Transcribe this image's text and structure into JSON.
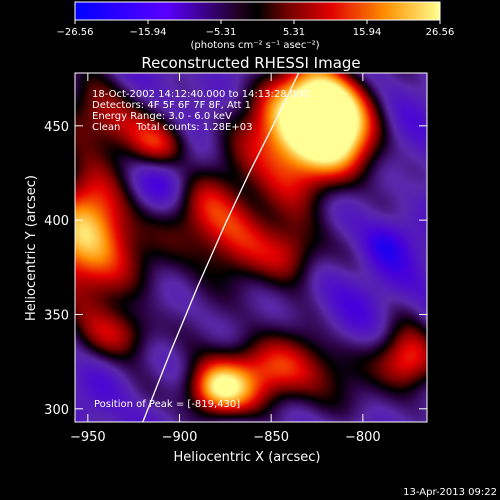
{
  "chart_data": {
    "type": "heatmap",
    "title": "Reconstructed RHESSI Image",
    "xlabel": "Heliocentric X (arcsec)",
    "ylabel": "Heliocentric Y (arcsec)",
    "xlim": [
      -957,
      -765
    ],
    "ylim": [
      293,
      478
    ],
    "x_ticks": [
      -950,
      -900,
      -850,
      -800
    ],
    "x_tick_labels": [
      "−950",
      "−900",
      "−850",
      "−800"
    ],
    "y_ticks": [
      300,
      350,
      400,
      450
    ],
    "y_tick_labels": [
      "300",
      "350",
      "400",
      "450"
    ],
    "colorbar": {
      "min": -26.56,
      "max": 26.56,
      "tick_labels": [
        "−26.56",
        "−15.94",
        "−5.31",
        "5.31",
        "15.94",
        "26.56"
      ],
      "tick_values": [
        -26.56,
        -15.94,
        -5.31,
        5.31,
        15.94,
        26.56
      ],
      "units": "(photons cm⁻² s⁻¹ asec⁻²)"
    },
    "blobs": [
      {
        "x": -834,
        "y": 448,
        "value": 26.5,
        "sx": 20,
        "sy": 22
      },
      {
        "x": -820,
        "y": 460,
        "value": 20,
        "sx": 14,
        "sy": 14
      },
      {
        "x": -950,
        "y": 390,
        "value": 24,
        "sx": 18,
        "sy": 24
      },
      {
        "x": -943,
        "y": 455,
        "value": 11,
        "sx": 16,
        "sy": 14
      },
      {
        "x": -910,
        "y": 440,
        "value": 8,
        "sx": 12,
        "sy": 10
      },
      {
        "x": -878,
        "y": 398,
        "value": 12,
        "sx": 22,
        "sy": 22
      },
      {
        "x": -880,
        "y": 310,
        "value": 20,
        "sx": 12,
        "sy": 10
      },
      {
        "x": -845,
        "y": 320,
        "value": 13,
        "sx": 26,
        "sy": 14
      },
      {
        "x": -775,
        "y": 325,
        "value": 14,
        "sx": 12,
        "sy": 12
      },
      {
        "x": -930,
        "y": 340,
        "value": 6,
        "sx": 14,
        "sy": 10
      },
      {
        "x": -838,
        "y": 382,
        "value": 7,
        "sx": 12,
        "sy": 12
      },
      {
        "x": -808,
        "y": 440,
        "value": 5,
        "sx": 14,
        "sy": 14
      },
      {
        "x": -906,
        "y": 422,
        "value": -22,
        "sx": 12,
        "sy": 12
      },
      {
        "x": -935,
        "y": 462,
        "value": -14,
        "sx": 12,
        "sy": 9
      },
      {
        "x": -788,
        "y": 388,
        "value": -20,
        "sx": 9,
        "sy": 9
      },
      {
        "x": -925,
        "y": 366,
        "value": -10,
        "sx": 16,
        "sy": 10
      },
      {
        "x": -808,
        "y": 362,
        "value": -13,
        "sx": 18,
        "sy": 12
      },
      {
        "x": -790,
        "y": 405,
        "value": -9,
        "sx": 16,
        "sy": 14
      },
      {
        "x": -860,
        "y": 352,
        "value": -7,
        "sx": 12,
        "sy": 10
      },
      {
        "x": -790,
        "y": 300,
        "value": -8,
        "sx": 20,
        "sy": 8
      },
      {
        "x": -955,
        "y": 325,
        "value": -9,
        "sx": 10,
        "sy": 10
      }
    ],
    "limb_curve": {
      "points": [
        [
          -920,
          293
        ],
        [
          -905,
          330
        ],
        [
          -890,
          365
        ],
        [
          -875,
          398
        ],
        [
          -862,
          425
        ],
        [
          -848,
          452
        ],
        [
          -835,
          478
        ]
      ]
    },
    "annotations": [
      "18-Oct-2002 14:12:40.000 to 14:13:28.000",
      "Detectors: 4F 5F 6F 7F 8F, Att 1",
      "Energy Range: 3.0 - 6.0 keV",
      "Clean     Total counts: 1.28E+03"
    ],
    "peak_label": "Position of Peak = [-819,430]"
  },
  "footer": {
    "timestamp": "13-Apr-2013 09:22"
  }
}
